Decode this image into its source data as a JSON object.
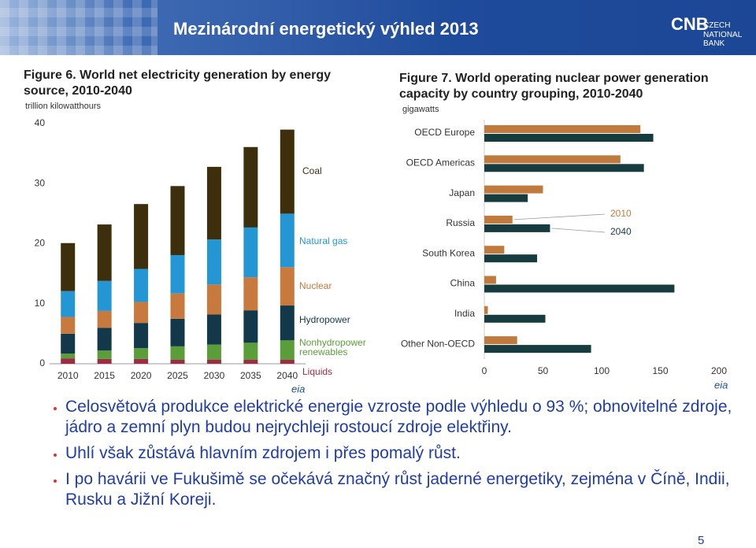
{
  "header": {
    "title": "Mezinárodní energetický výhled 2013",
    "logo": "CNB",
    "logo_caption": [
      "CZECH",
      "NATIONAL BANK"
    ]
  },
  "chart_data": [
    {
      "type": "stacked-bar",
      "title": "Figure 6. World net electricity generation by energy source, 2010-2040",
      "unit": "trillion kilowatthours",
      "source_logo": "eia",
      "categories": [
        "2010",
        "2015",
        "2020",
        "2025",
        "2030",
        "2035",
        "2040"
      ],
      "series": [
        {
          "name": "Liquids",
          "color": "#9b2d43",
          "values": [
            0.9,
            0.8,
            0.8,
            0.7,
            0.7,
            0.7,
            0.7
          ]
        },
        {
          "name": "Nonhydropower renewables",
          "color": "#5a9e3a",
          "values": [
            0.8,
            1.4,
            1.8,
            2.2,
            2.5,
            2.8,
            3.2
          ]
        },
        {
          "name": "Hydropower",
          "color": "#13384a",
          "values": [
            3.3,
            3.8,
            4.2,
            4.6,
            5.0,
            5.4,
            5.8
          ]
        },
        {
          "name": "Nuclear",
          "color": "#c8793e",
          "values": [
            2.8,
            2.8,
            3.5,
            4.2,
            5.0,
            5.5,
            6.4
          ]
        },
        {
          "name": "Natural gas",
          "color": "#2596d4",
          "values": [
            4.3,
            5.0,
            5.5,
            6.4,
            7.5,
            8.3,
            8.9
          ]
        },
        {
          "name": "Coal",
          "color": "#3d2f0b",
          "values": [
            8.0,
            9.4,
            10.8,
            11.5,
            12.1,
            13.4,
            14.0
          ]
        }
      ],
      "ylim": [
        0,
        40
      ],
      "yticks": [
        0,
        10,
        20,
        30,
        40
      ]
    },
    {
      "type": "hbar",
      "title": "Figure 7. World operating nuclear power generation capacity by country grouping, 2010-2040",
      "unit": "gigawatts",
      "source_logo": "eia",
      "categories": [
        "OECD Europe",
        "OECD Americas",
        "Japan",
        "Russia",
        "South Korea",
        "China",
        "India",
        "Other Non-OECD"
      ],
      "series": [
        {
          "name": "2010",
          "color": "#c07a3c",
          "values": [
            133,
            116,
            50,
            24,
            17,
            10,
            3,
            28
          ]
        },
        {
          "name": "2040",
          "color": "#173c40",
          "values": [
            144,
            136,
            37,
            56,
            45,
            162,
            52,
            91
          ]
        }
      ],
      "xlim": [
        0,
        200
      ],
      "xticks": [
        0,
        50,
        100,
        150,
        200
      ]
    }
  ],
  "bullets": [
    "Celosvětová produkce elektrické energie vzroste podle výhledu o 93 %; obnovitelné zdroje, jádro a zemní plyn budou nejrychleji rostoucí zdroje elektřiny.",
    "Uhlí však zůstává hlavním zdrojem i přes pomalý růst.",
    "I po havárii ve Fukušimě se očekává značný růst jaderné energetiky, zejména v Číně, Indii, Rusku a Jižní Koreji."
  ],
  "page_number": "5"
}
